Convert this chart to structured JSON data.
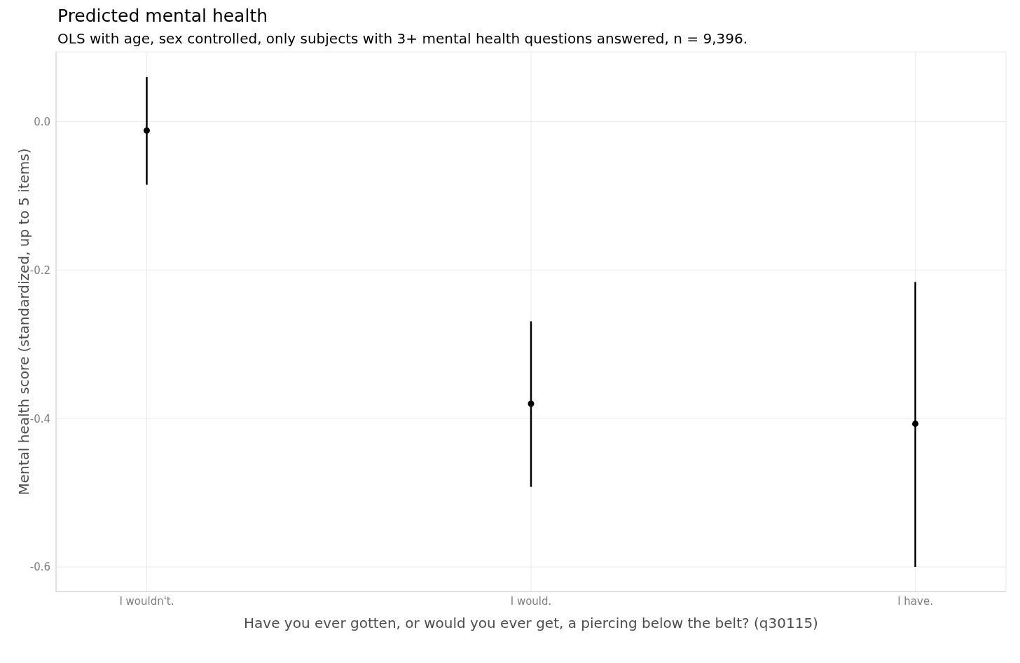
{
  "chart_data": {
    "type": "scatter",
    "title": "Predicted mental health",
    "subtitle": "OLS with age, sex controlled, only subjects with 3+ mental health questions answered, n = 9,396.",
    "xlabel": "Have you ever gotten, or would you ever get, a piercing below the belt? (q30115)",
    "ylabel": "Mental health score (standardized, up to 5 items)",
    "categories": [
      "I wouldn't.",
      "I would.",
      "I have."
    ],
    "values": [
      -0.012,
      -0.38,
      -0.407
    ],
    "errors": [
      [
        -0.085,
        0.06
      ],
      [
        -0.492,
        -0.269
      ],
      [
        -0.6,
        -0.216
      ]
    ],
    "color": "#000000",
    "ylim": [
      -0.633,
      0.094
    ],
    "yticks": [
      {
        "value": 0,
        "label": "0.0"
      },
      -0.2,
      -0.4,
      -0.6
    ],
    "grid": true,
    "marker": "circle"
  }
}
